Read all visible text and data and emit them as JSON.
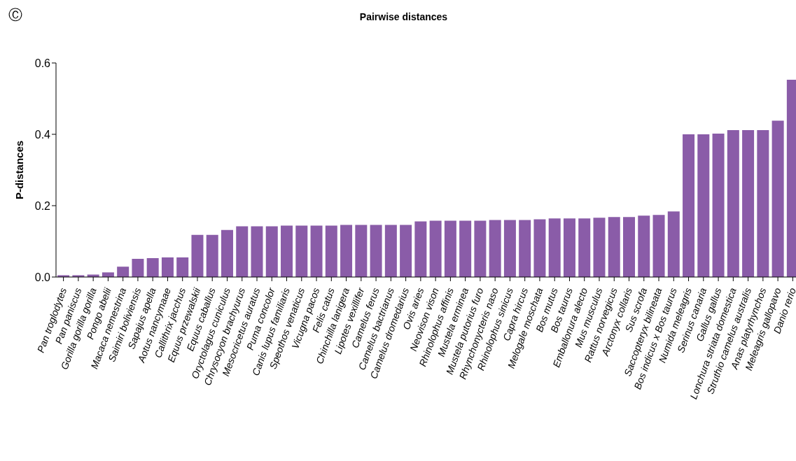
{
  "chart_data": {
    "type": "bar",
    "title": "Pairwise distances",
    "ylabel": "P-distances",
    "annotations": [
      "Ⓒ"
    ],
    "categories": [
      "Pan troglodytes",
      "Pan paniscus",
      "Gorilla gorilla gorilla",
      "Pongo abelii",
      "Macaca nemestrina",
      "Saimiri boliviensis",
      "Sapajus apella",
      "Aotus nancymaae",
      "Callithrix jacchus",
      "Equus przewalskii",
      "Equus caballus",
      "Oryctolagus cuniculus",
      "Chrysocyon brachyurus",
      "Mesocricetus auratus",
      "Puma concolor",
      "Canis lupus familiaris",
      "Speothos venaticus",
      "Vicugna pacos",
      "Felis catus",
      "Chinchilla lanigera",
      "Lipotes vexillifer",
      "Camelus ferus",
      "Camelus bactrianus",
      "Camelus dromedarius",
      "Ovis aries",
      "Neovison vison",
      "Rhinolophus affinis",
      "Mustela erminea",
      "Mustela putorius furo",
      "Rhynchonycteris naso",
      "Rhinolophus sinicus",
      "Capra hircus",
      "Melogale moschata",
      "Bos mutus",
      "Bos taurus",
      "Emballonura alecto",
      "Mus musculus",
      "Rattus norvegicus",
      "Arctonyx collaris",
      "Sus scrofa",
      "Saccopteryx bilineata",
      "Bos indicus x Bos taurus",
      "Numida meleagris",
      "Serinus canaria",
      "Gallus gallus",
      "Lonchura striata domestica",
      "Struthio camelus australis",
      "Anas platyrhynchos",
      "Meleagris gallopavo",
      "Danio rerio"
    ],
    "values": [
      0.005,
      0.005,
      0.007,
      0.013,
      0.029,
      0.051,
      0.053,
      0.055,
      0.055,
      0.118,
      0.118,
      0.132,
      0.142,
      0.142,
      0.142,
      0.144,
      0.144,
      0.144,
      0.144,
      0.146,
      0.146,
      0.146,
      0.146,
      0.146,
      0.156,
      0.158,
      0.158,
      0.158,
      0.158,
      0.16,
      0.16,
      0.16,
      0.162,
      0.164,
      0.164,
      0.164,
      0.166,
      0.168,
      0.168,
      0.172,
      0.174,
      0.184,
      0.4,
      0.4,
      0.402,
      0.412,
      0.412,
      0.412,
      0.438,
      0.553
    ],
    "color": "#8a5ca8",
    "ylim": [
      0,
      0.6
    ],
    "yticks": [
      {
        "value": 0,
        "label": "0.0"
      },
      {
        "value": 0.2,
        "label": "0.2"
      },
      {
        "value": 0.4,
        "label": "0.4"
      },
      {
        "value": 0.6,
        "label": "0.6"
      }
    ],
    "grid": false,
    "legend": false
  }
}
